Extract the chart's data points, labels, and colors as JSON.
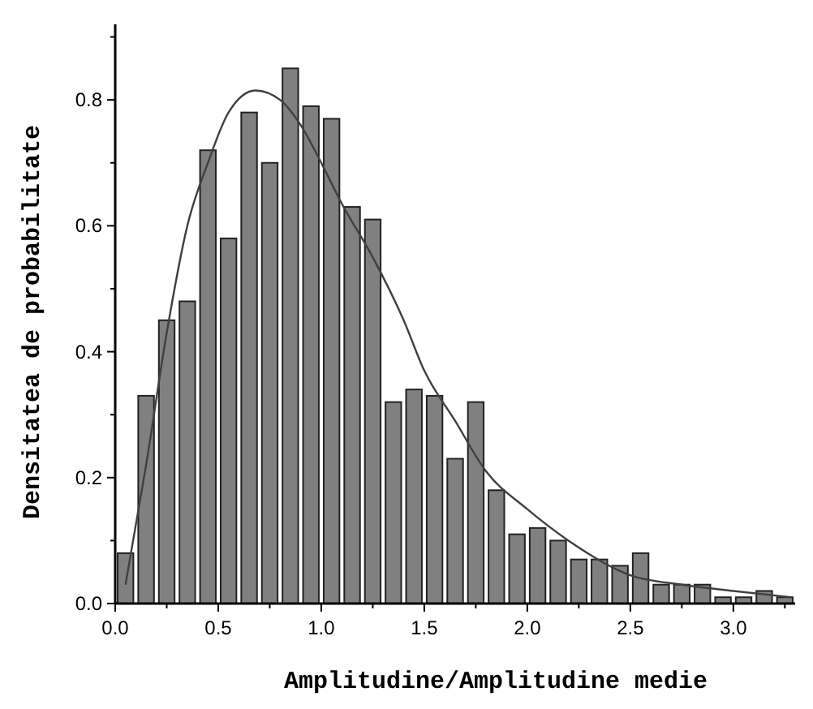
{
  "chart_data": {
    "type": "histogram",
    "xlabel": "Amplitudine/Amplitudine medie",
    "ylabel": "Densitatea de probabilitate",
    "bins": [
      0,
      0.1,
      0.2,
      0.3,
      0.4,
      0.5,
      0.6,
      0.7,
      0.8,
      0.9,
      1.0,
      1.1,
      1.2,
      1.3,
      1.4,
      1.5,
      1.6,
      1.7,
      1.8,
      1.9,
      2.0,
      2.1,
      2.2,
      2.3,
      2.4,
      2.5,
      2.6,
      2.7,
      2.8,
      2.9,
      3.0,
      3.1,
      3.2,
      3.3
    ],
    "series": [
      {
        "color": "#808080",
        "values": [
          0.08,
          0.33,
          0.45,
          0.48,
          0.72,
          0.58,
          0.78,
          0.7,
          0.85,
          0.79,
          0.77,
          0.63,
          0.61,
          0.32,
          0.34,
          0.33,
          0.23,
          0.32,
          0.18,
          0.11,
          0.12,
          0.1,
          0.07,
          0.07,
          0.06,
          0.08,
          0.03,
          0.03,
          0.03,
          0.01,
          0.01,
          0.02,
          0.01
        ]
      },
      {
        "type": "line",
        "color": "#404040",
        "x": [
          0.05,
          0.15,
          0.25,
          0.35,
          0.45,
          0.55,
          0.68,
          0.8,
          0.9,
          1.0,
          1.1,
          1.25,
          1.4,
          1.5,
          1.65,
          1.8,
          2.0,
          2.2,
          2.5,
          2.75,
          3.0,
          3.28
        ],
        "values": [
          0.03,
          0.22,
          0.43,
          0.6,
          0.7,
          0.78,
          0.815,
          0.8,
          0.76,
          0.7,
          0.635,
          0.55,
          0.45,
          0.37,
          0.29,
          0.21,
          0.15,
          0.1,
          0.045,
          0.03,
          0.02,
          0.01
        ]
      }
    ],
    "xlim": [
      0,
      3.3
    ],
    "ylim": [
      0,
      0.92
    ],
    "xticks": [
      {
        "value": 0,
        "label": "0.0"
      },
      {
        "value": 0.25,
        "label": null
      },
      {
        "value": 0.5,
        "label": "0.5"
      },
      {
        "value": 0.75,
        "label": null
      },
      {
        "value": 1,
        "label": "1.0"
      },
      {
        "value": 1.25,
        "label": null
      },
      {
        "value": 1.5,
        "label": "1.5"
      },
      {
        "value": 1.75,
        "label": null
      },
      {
        "value": 2,
        "label": "2.0"
      },
      {
        "value": 2.25,
        "label": null
      },
      {
        "value": 2.5,
        "label": "2.5"
      },
      {
        "value": 2.75,
        "label": null
      },
      {
        "value": 3,
        "label": "3.0"
      },
      {
        "value": 3.25,
        "label": null
      }
    ],
    "yticks": [
      {
        "value": 0,
        "label": "0.0"
      },
      {
        "value": 0.1,
        "label": null
      },
      {
        "value": 0.2,
        "label": "0.2"
      },
      {
        "value": 0.3,
        "label": null
      },
      {
        "value": 0.4,
        "label": "0.4"
      },
      {
        "value": 0.5,
        "label": null
      },
      {
        "value": 0.6,
        "label": "0.6"
      },
      {
        "value": 0.7,
        "label": null
      },
      {
        "value": 0.8,
        "label": "0.8"
      },
      {
        "value": 0.9,
        "label": null
      }
    ],
    "grid": false
  }
}
